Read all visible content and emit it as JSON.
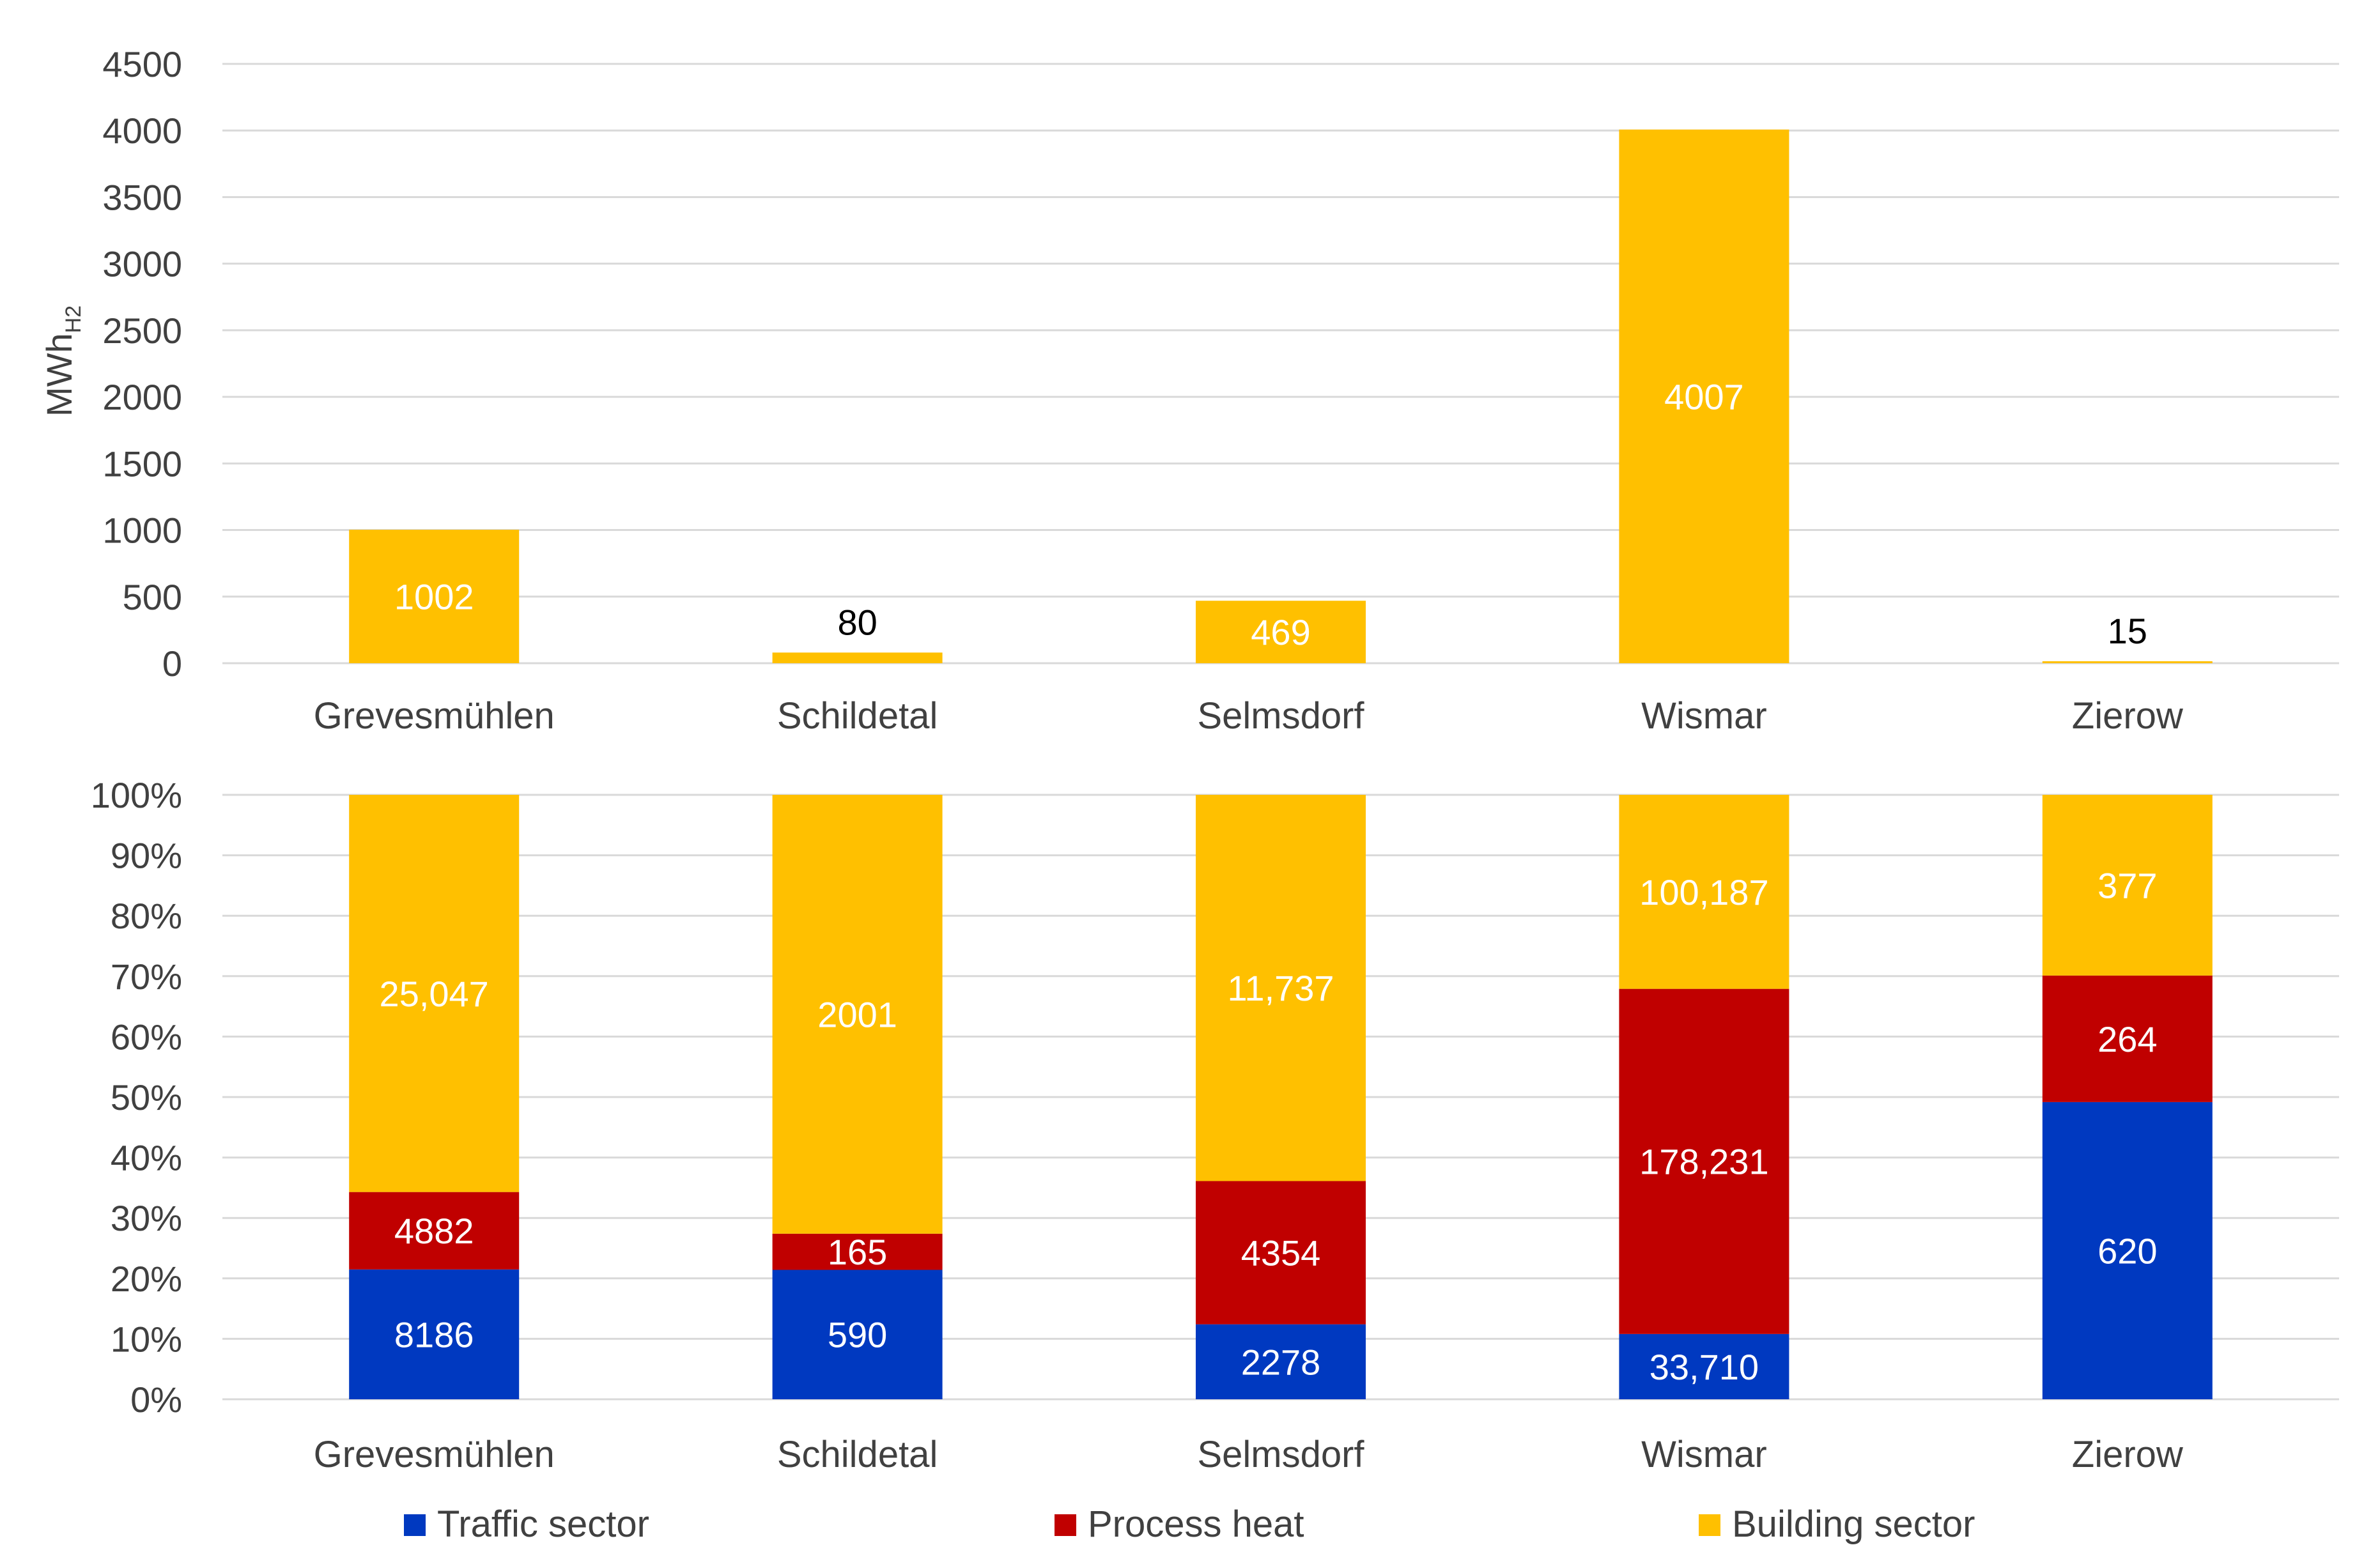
{
  "colors": {
    "traffic": "#0039C0",
    "process": "#C00000",
    "building": "#FFC000",
    "grid": "#d9d9d9",
    "text": "#404040"
  },
  "chart_data": [
    {
      "type": "bar",
      "title": "",
      "ylabel": "MWh",
      "ylabel_sub": "H2",
      "ylim": [
        0,
        4500
      ],
      "yticks": [
        0,
        500,
        1000,
        1500,
        2000,
        2500,
        3000,
        3500,
        4000,
        4500
      ],
      "categories": [
        "Grevesmühlen",
        "Schildetal",
        "Selmsdorf",
        "Wismar",
        "Zierow"
      ],
      "series": [
        {
          "name": "Building sector",
          "values": [
            1002,
            80,
            469,
            4007,
            15
          ],
          "labels": [
            "1002",
            "80",
            "469",
            "4007",
            "15"
          ]
        }
      ]
    },
    {
      "type": "bar",
      "stacked": "percent",
      "title": "",
      "ylim": [
        0,
        100
      ],
      "yticks": [
        "0%",
        "10%",
        "20%",
        "30%",
        "40%",
        "50%",
        "60%",
        "70%",
        "80%",
        "90%",
        "100%"
      ],
      "categories": [
        "Grevesmühlen",
        "Schildetal",
        "Selmsdorf",
        "Wismar",
        "Zierow"
      ],
      "series": [
        {
          "name": "Traffic sector",
          "key": "traffic",
          "values": [
            8186,
            590,
            2278,
            33710,
            620
          ],
          "labels": [
            "8186",
            "590",
            "2278",
            "33,710",
            "620"
          ]
        },
        {
          "name": "Process heat",
          "key": "process",
          "values": [
            4882,
            165,
            4354,
            178231,
            264
          ],
          "labels": [
            "4882",
            "165",
            "4354",
            "178,231",
            "264"
          ]
        },
        {
          "name": "Building sector",
          "key": "building",
          "values": [
            25047,
            2001,
            11737,
            100187,
            377
          ],
          "labels": [
            "25,047",
            "2001",
            "11,737",
            "100,187",
            "377"
          ]
        }
      ]
    }
  ],
  "legend": [
    {
      "label": "Traffic sector",
      "key": "traffic"
    },
    {
      "label": "Process heat",
      "key": "process"
    },
    {
      "label": "Building sector",
      "key": "building"
    }
  ]
}
